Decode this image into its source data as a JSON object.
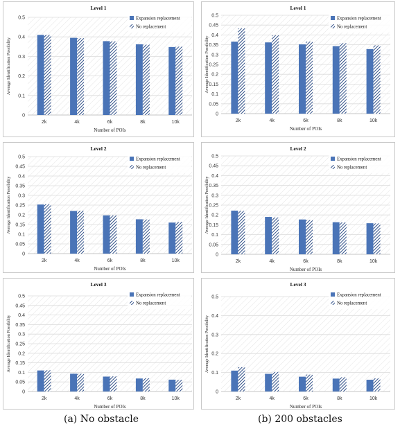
{
  "captions": {
    "left": "(a)  No obstacle",
    "right": "(b)  200 obstacles"
  },
  "colors": {
    "expansion": "#4a74b7",
    "noreplace": "#2e4e87",
    "grid": "#dcdcdc",
    "hatch": "#e4e4e4"
  },
  "chart_data": [
    {
      "type": "bar",
      "title": "Level 1",
      "xlabel": "Number of POIs",
      "ylabel": "Average Identification Possibility",
      "categories": [
        "2k",
        "4k",
        "6k",
        "8k",
        "10k"
      ],
      "ylim": [
        0,
        0.5
      ],
      "yticks": [
        "0",
        "0.1",
        "0.2",
        "0.3",
        "0.4",
        "0.5"
      ],
      "legend": "top-right",
      "grid": true,
      "series": [
        {
          "name": "Expansion replacement",
          "values": [
            0.41,
            0.395,
            0.378,
            0.362,
            0.348
          ]
        },
        {
          "name": "No replacement",
          "values": [
            0.41,
            0.393,
            0.377,
            0.36,
            0.35
          ]
        }
      ]
    },
    {
      "type": "bar",
      "title": "Level 1",
      "xlabel": "Number of POIs",
      "ylabel": "Average Identification Possibility",
      "categories": [
        "2k",
        "4k",
        "6k",
        "8k",
        "10k"
      ],
      "ylim": [
        0,
        0.5
      ],
      "yticks": [
        "0",
        "0.05",
        "0.1",
        "0.15",
        "0.2",
        "0.25",
        "0.3",
        "0.35",
        "0.4",
        "0.45",
        "0.5"
      ],
      "legend": "top-right",
      "grid": true,
      "series": [
        {
          "name": "Expansion replacement",
          "values": [
            0.366,
            0.362,
            0.352,
            0.343,
            0.328
          ]
        },
        {
          "name": "No replacement",
          "values": [
            0.433,
            0.398,
            0.366,
            0.358,
            0.347
          ]
        }
      ]
    },
    {
      "type": "bar",
      "title": "Level 2",
      "xlabel": "Number of POIs",
      "ylabel": "Average Identification Possibility",
      "categories": [
        "2k",
        "4k",
        "6k",
        "8k",
        "10k"
      ],
      "ylim": [
        0,
        0.5
      ],
      "yticks": [
        "0",
        "0.05",
        "0.1",
        "0.15",
        "0.2",
        "0.25",
        "0.3",
        "0.35",
        "0.4",
        "0.45",
        "0.5"
      ],
      "legend": "top-right",
      "grid": true,
      "series": [
        {
          "name": "Expansion replacement",
          "values": [
            0.253,
            0.22,
            0.197,
            0.177,
            0.16
          ]
        },
        {
          "name": "No replacement",
          "values": [
            0.255,
            0.221,
            0.197,
            0.176,
            0.163
          ]
        }
      ]
    },
    {
      "type": "bar",
      "title": "Level 2",
      "xlabel": "Number of POIs",
      "ylabel": "Average Identification Possibility",
      "categories": [
        "2k",
        "4k",
        "6k",
        "8k",
        "10k"
      ],
      "ylim": [
        0,
        0.5
      ],
      "yticks": [
        "0",
        "0.05",
        "0.1",
        "0.15",
        "0.2",
        "0.25",
        "0.3",
        "0.35",
        "0.4",
        "0.45",
        "0.5"
      ],
      "legend": "top-right",
      "grid": true,
      "series": [
        {
          "name": "Expansion replacement",
          "values": [
            0.222,
            0.19,
            0.177,
            0.163,
            0.158
          ]
        },
        {
          "name": "No replacement",
          "values": [
            0.221,
            0.187,
            0.174,
            0.162,
            0.157
          ]
        }
      ]
    },
    {
      "type": "bar",
      "title": "Level 3",
      "xlabel": "Number of POIs",
      "ylabel": "Average Identification Possibility",
      "categories": [
        "2k",
        "4k",
        "6k",
        "8k",
        "10k"
      ],
      "ylim": [
        0,
        0.5
      ],
      "yticks": [
        "0",
        "0.05",
        "0.1",
        "0.15",
        "0.2",
        "0.25",
        "0.3",
        "0.35",
        "0.4",
        "0.45",
        "0.5"
      ],
      "legend": "top-right",
      "grid": true,
      "series": [
        {
          "name": "Expansion replacement",
          "values": [
            0.11,
            0.093,
            0.078,
            0.068,
            0.062
          ]
        },
        {
          "name": "No replacement",
          "values": [
            0.111,
            0.093,
            0.079,
            0.069,
            0.061
          ]
        }
      ]
    },
    {
      "type": "bar",
      "title": "Level 3",
      "xlabel": "Number of POIs",
      "ylabel": "Average Identification Possibility",
      "categories": [
        "2k",
        "4k",
        "6k",
        "8k",
        "10k"
      ],
      "ylim": [
        0,
        0.5
      ],
      "yticks": [
        "0",
        "0.1",
        "0.2",
        "0.3",
        "0.4",
        "0.5"
      ],
      "legend": "top-right",
      "grid": true,
      "series": [
        {
          "name": "Expansion replacement",
          "values": [
            0.11,
            0.093,
            0.078,
            0.068,
            0.062
          ]
        },
        {
          "name": "No replacement",
          "values": [
            0.128,
            0.103,
            0.089,
            0.075,
            0.069
          ]
        }
      ]
    }
  ]
}
